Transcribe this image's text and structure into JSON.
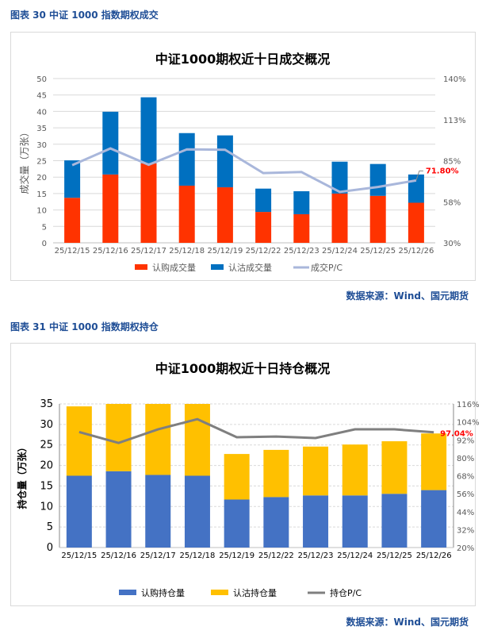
{
  "figure1": {
    "caption": "图表 30  中证 1000 指数期权成交",
    "source": "数据来源：Wind、国元期货"
  },
  "figure2": {
    "caption": "图表 31  中证 1000 指数期权持仓",
    "source": "数据来源：Wind、国元期货"
  },
  "chart_data": [
    {
      "type": "bar",
      "stacked": true,
      "title": "中证1000期权近十日成交概况",
      "ylabel": "成交量（万张）",
      "ylim": [
        0,
        50
      ],
      "yticks": [
        0,
        5,
        10,
        15,
        20,
        25,
        30,
        35,
        40,
        45,
        50
      ],
      "y2lim": [
        30,
        140
      ],
      "y2ticks": [
        "30%",
        "58%",
        "85%",
        "113%",
        "140%"
      ],
      "grid": true,
      "legend": "bottom",
      "categories": [
        "25/12/15",
        "25/12/16",
        "25/12/17",
        "25/12/18",
        "25/12/19",
        "25/12/22",
        "25/12/23",
        "25/12/24",
        "25/12/25",
        "25/12/26"
      ],
      "series": [
        {
          "name": "认购成交量",
          "type": "bar",
          "color": "#ff3300",
          "values": [
            13.7,
            20.8,
            24.2,
            17.4,
            16.9,
            9.4,
            8.7,
            15.0,
            14.3,
            12.2
          ]
        },
        {
          "name": "认沽成交量",
          "type": "bar",
          "color": "#0070c0",
          "values": [
            11.4,
            19.1,
            20.1,
            16.0,
            15.8,
            7.1,
            7.0,
            9.7,
            9.7,
            8.6
          ]
        },
        {
          "name": "成交P/C",
          "type": "line",
          "axis": "right",
          "color": "#a9b7db",
          "values": [
            82.0,
            93.2,
            82.3,
            92.6,
            92.3,
            76.7,
            77.4,
            64.1,
            67.4,
            71.8
          ]
        }
      ],
      "annotation": "71.80%"
    },
    {
      "type": "bar",
      "stacked": true,
      "title": "中证1000期权近十日持仓概况",
      "ylabel": "持仓量（万张）",
      "ylim": [
        0,
        35
      ],
      "yticks": [
        0,
        5,
        10,
        15,
        20,
        25,
        30,
        35
      ],
      "y2lim": [
        20,
        116
      ],
      "y2ticks": [
        "20%",
        "32%",
        "44%",
        "56%",
        "68%",
        "80%",
        "92%",
        "104%",
        "116%"
      ],
      "grid": true,
      "legend": "bottom",
      "categories": [
        "25/12/15",
        "25/12/16",
        "25/12/17",
        "25/12/18",
        "25/12/19",
        "25/12/22",
        "25/12/23",
        "25/12/24",
        "25/12/25",
        "25/12/26"
      ],
      "series": [
        {
          "name": "认购持仓量",
          "type": "bar",
          "color": "#4472c4",
          "values": [
            17.5,
            18.6,
            17.7,
            17.5,
            11.7,
            12.3,
            12.7,
            12.7,
            13.1,
            14.0
          ]
        },
        {
          "name": "认沽持仓量",
          "type": "bar",
          "color": "#ffc000",
          "values": [
            16.9,
            16.7,
            17.5,
            18.5,
            11.1,
            11.5,
            11.9,
            12.4,
            12.8,
            13.8
          ]
        },
        {
          "name": "持仓P/C",
          "type": "line",
          "axis": "right",
          "color": "#7f7f7f",
          "values": [
            97.2,
            89.9,
            99.0,
            105.8,
            93.7,
            94.2,
            93.2,
            99.0,
            99.0,
            97.04
          ]
        }
      ],
      "annotation": "97.04%"
    }
  ]
}
